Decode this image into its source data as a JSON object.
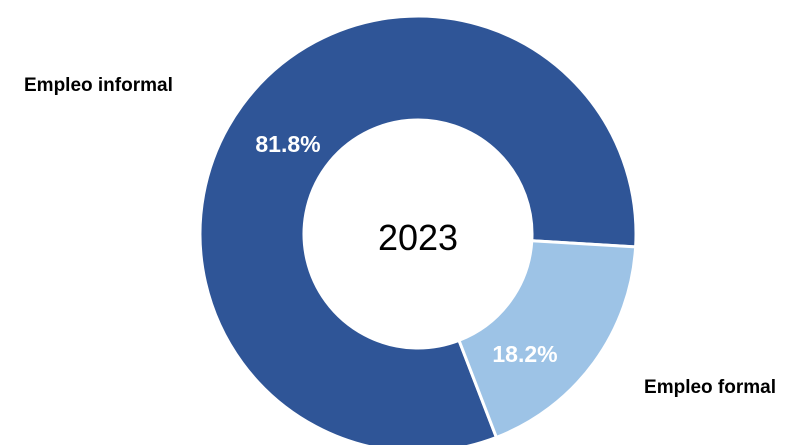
{
  "chart_data": {
    "type": "pie",
    "variant": "donut",
    "center_text": "2023",
    "slices": [
      {
        "name": "Empleo informal",
        "value": 81.8,
        "value_label": "81.8%",
        "color": "#2f5597"
      },
      {
        "name": "Empleo formal",
        "value": 18.2,
        "value_label": "18.2%",
        "color": "#9dc3e6"
      }
    ],
    "legend": "none"
  }
}
